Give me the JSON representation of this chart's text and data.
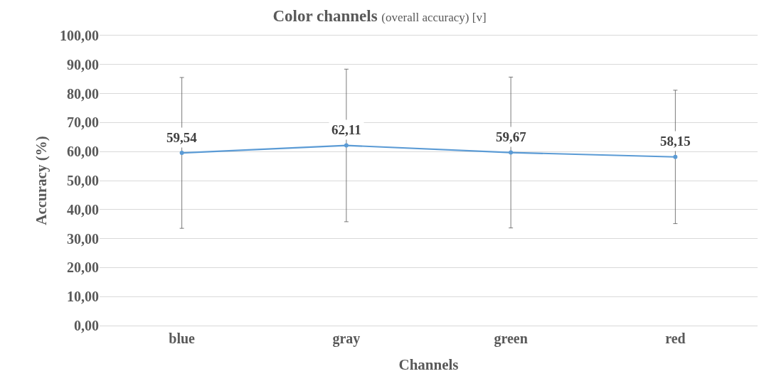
{
  "chart_data": {
    "type": "line",
    "title": "Color channels",
    "subtitle": "(overall accuracy) [v]",
    "xlabel": "Channels",
    "ylabel": "Accuracy (%)",
    "categories": [
      "blue",
      "gray",
      "green",
      "red"
    ],
    "series": [
      {
        "color": "#5b9bd5",
        "values": [
          59.54,
          62.11,
          59.67,
          58.15
        ],
        "errors": [
          26,
          26.3,
          26,
          23
        ],
        "value_labels": [
          "59,54",
          "62,11",
          "59,67",
          "58,15"
        ]
      }
    ],
    "ylim": [
      0,
      100
    ],
    "yticks": [
      {
        "value": 0,
        "label": "0,00"
      },
      {
        "value": 10,
        "label": "10,00"
      },
      {
        "value": 20,
        "label": "20,00"
      },
      {
        "value": 30,
        "label": "30,00"
      },
      {
        "value": 40,
        "label": "40,00"
      },
      {
        "value": 50,
        "label": "50,00"
      },
      {
        "value": 60,
        "label": "60,00"
      },
      {
        "value": 70,
        "label": "70,00"
      },
      {
        "value": 80,
        "label": "80,00"
      },
      {
        "value": 90,
        "label": "90,00"
      },
      {
        "value": 100,
        "label": "100,00"
      }
    ],
    "grid": "y",
    "marker": "circle",
    "line_style": "solid"
  }
}
